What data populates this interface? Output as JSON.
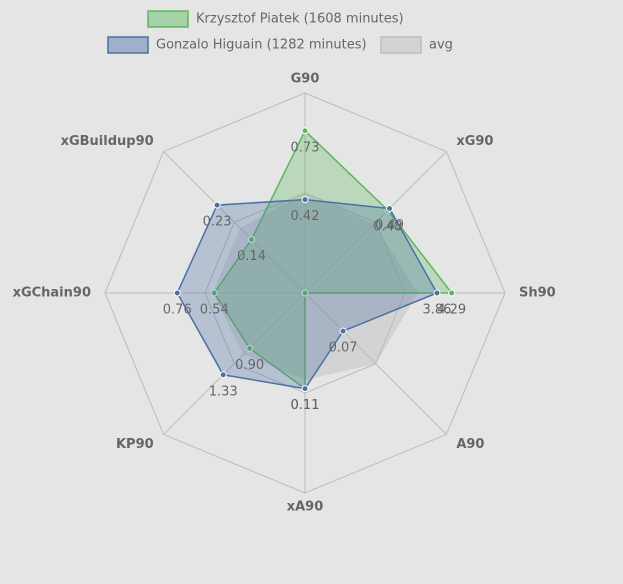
{
  "chart_data": {
    "type": "radar",
    "axes": [
      "G90",
      "xG90",
      "Sh90",
      "A90",
      "xA90",
      "KP90",
      "xGChain90",
      "xGBuildup90"
    ],
    "ranges": [
      [
        0,
        0.9
      ],
      [
        0,
        0.82
      ],
      [
        0,
        5.85
      ],
      [
        0,
        0.26
      ],
      [
        0,
        0.23
      ],
      [
        0,
        2.3
      ],
      [
        0,
        1.19
      ],
      [
        0,
        0.37
      ]
    ],
    "series": [
      {
        "name": "Krzysztof Piatek (1608 minutes)",
        "color": "#5cb85c",
        "values": [
          0.73,
          0.48,
          4.29,
          0,
          0.11,
          0.9,
          0.54,
          0.14
        ],
        "value_labels": [
          "0.73",
          "0.48",
          "4.29",
          null,
          "0.11",
          "0.90",
          "0.54",
          "0.14"
        ]
      },
      {
        "name": "Gonzalo Higuain (1282 minutes)",
        "color": "#4a70a5",
        "values": [
          0.42,
          0.49,
          3.86,
          0.07,
          0.11,
          1.33,
          0.76,
          0.23
        ],
        "value_labels": [
          "0.42",
          "0.49",
          "3.86",
          "0.07",
          "0.11",
          "1.33",
          "0.76",
          "0.23"
        ]
      },
      {
        "name": "avg",
        "color": "#bdbdbd",
        "values": [
          0.45,
          0.4,
          3.3,
          0.13,
          0.1,
          1.0,
          0.55,
          0.17
        ]
      }
    ]
  }
}
